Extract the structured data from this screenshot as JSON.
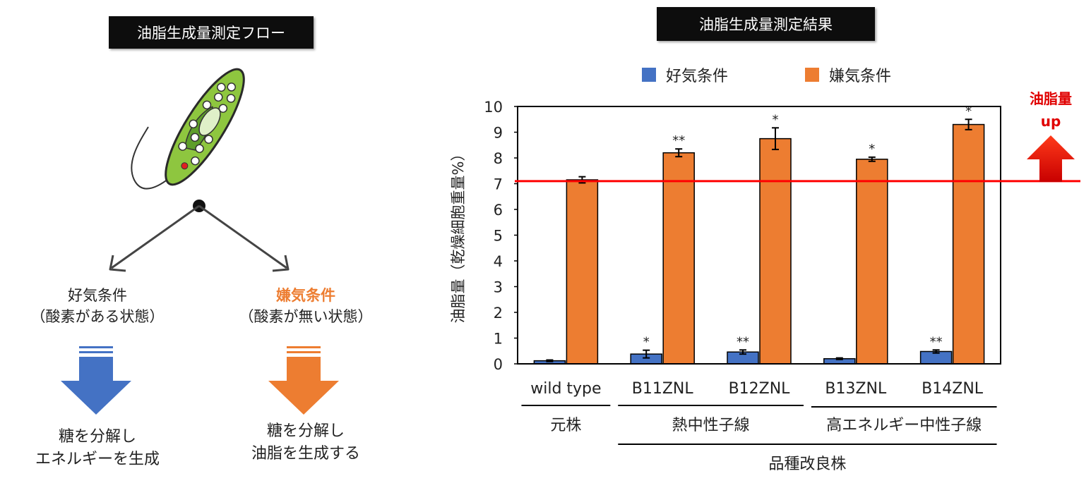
{
  "flow": {
    "title": "油脂生成量測定フロー",
    "aerobic": {
      "title": "好気条件",
      "desc": "（酸素がある状態）",
      "result_line1": "糖を分解し",
      "result_line2": "エネルギーを生成"
    },
    "anaerobic": {
      "title": "嫌気条件",
      "desc": "（酸素が無い状態）",
      "result_line1": "糖を分解し",
      "result_line2": "油脂を生成する"
    }
  },
  "results": {
    "title": "油脂生成量測定結果",
    "oil_up_line1": "油脂量",
    "oil_up_line2": "up"
  },
  "colors": {
    "aerobic": "#4472c4",
    "anaerobic": "#ed7d31",
    "baseline": "#ff0000",
    "highlight": "#ff0000"
  },
  "chart_data": {
    "type": "bar",
    "categories": [
      "wild type",
      "B11ZNL",
      "B12ZNL",
      "B13ZNL",
      "B14ZNL"
    ],
    "series": [
      {
        "name": "好気条件",
        "color": "#4472c4",
        "values": [
          0.12,
          0.38,
          0.46,
          0.2,
          0.48
        ],
        "errors": [
          0.03,
          0.15,
          0.08,
          0.03,
          0.06
        ],
        "significance": [
          "",
          "*",
          "**",
          "",
          "**"
        ]
      },
      {
        "name": "嫌気条件",
        "color": "#ed7d31",
        "values": [
          7.15,
          8.2,
          8.75,
          7.95,
          9.3
        ],
        "errors": [
          0.12,
          0.15,
          0.42,
          0.08,
          0.2
        ],
        "significance": [
          "",
          "**",
          "*",
          "*",
          "*"
        ]
      }
    ],
    "ylabel": "油脂量（乾燥細胞重量%）",
    "ylim": [
      0,
      10
    ],
    "yticks": [
      "0",
      "1",
      "2",
      "3",
      "4",
      "5",
      "6",
      "7",
      "8",
      "9",
      "10"
    ],
    "reference_line": 7.1,
    "groups": [
      {
        "label": "元株",
        "categories": [
          "wild type"
        ]
      },
      {
        "label": "熱中性子線",
        "categories": [
          "B11ZNL",
          "B12ZNL"
        ]
      },
      {
        "label": "高エネルギー中性子線",
        "categories": [
          "B13ZNL",
          "B14ZNL"
        ]
      }
    ],
    "supergroup": {
      "label": "品種改良株",
      "categories": [
        "B11ZNL",
        "B12ZNL",
        "B13ZNL",
        "B14ZNL"
      ]
    },
    "legend_position": "top",
    "grid": false
  }
}
